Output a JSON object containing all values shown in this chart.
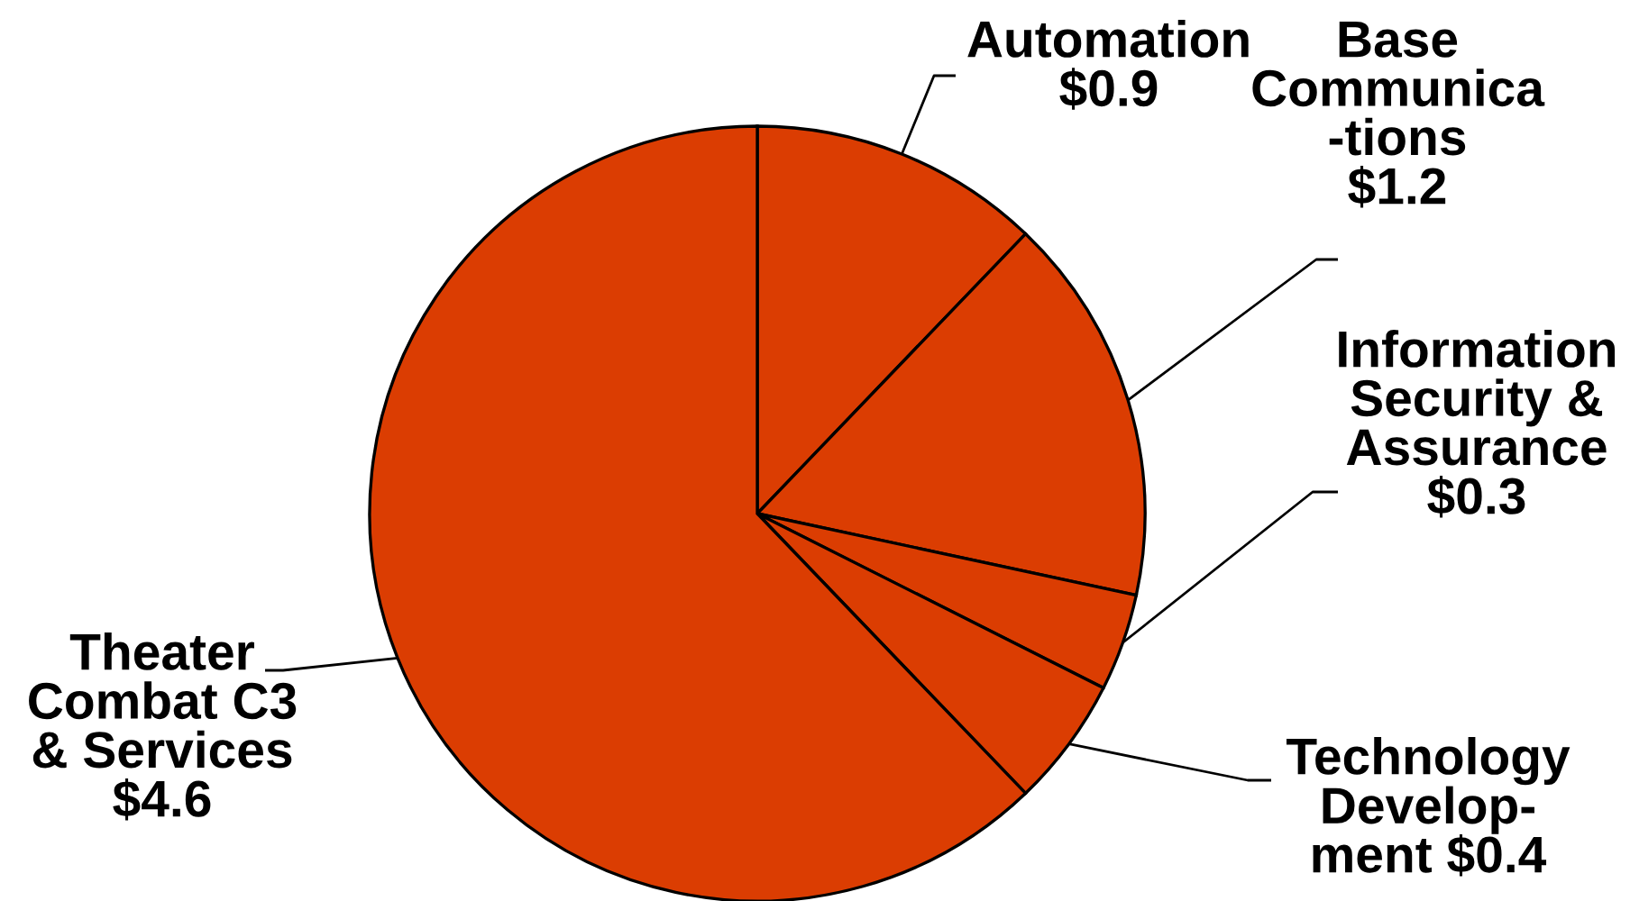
{
  "chart_data": {
    "type": "pie",
    "categories": [
      "Automation",
      "Base\nCommunica\n-tions",
      "Information\nSecurity &\nAssurance",
      "Technology\nDevelop-\nment",
      "Theater\nCombat C3\n& Services"
    ],
    "values": [
      0.9,
      1.2,
      0.3,
      0.4,
      4.6
    ],
    "value_labels": [
      "$0.9",
      "$1.2",
      "$0.3",
      "$0.4",
      "$4.6"
    ],
    "colors": [
      "#db3d02",
      "#db3d02",
      "#db3d02",
      "#db3d02",
      "#db3d02"
    ]
  }
}
